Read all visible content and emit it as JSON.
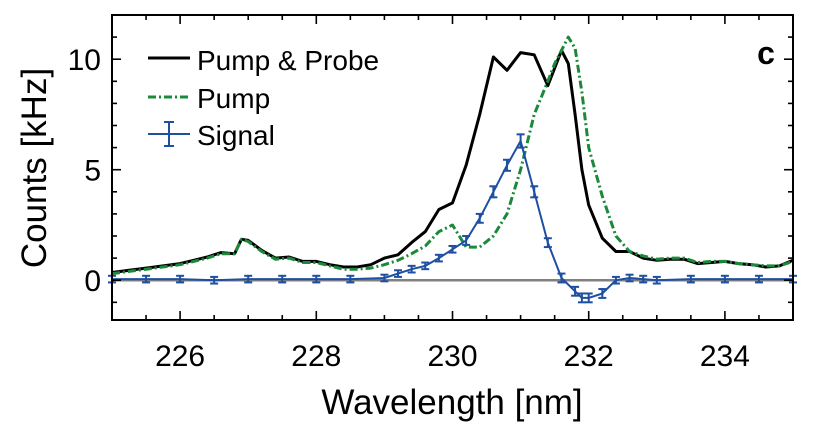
{
  "chart_data": {
    "type": "line",
    "panel_label": "c",
    "xlabel": "Wavelength [nm]",
    "ylabel": "Counts [kHz]",
    "xlim": [
      225,
      235
    ],
    "ylim": [
      -1.8,
      12
    ],
    "xticks": [
      226,
      228,
      230,
      232,
      234
    ],
    "yticks": [
      0,
      5,
      10
    ],
    "xtick_labels": [
      "226",
      "228",
      "230",
      "232",
      "234"
    ],
    "ytick_labels": [
      "0",
      "5",
      "10"
    ],
    "legend_position": "top-left",
    "series": [
      {
        "name": "Pump & Probe",
        "style": "solid",
        "color": "#000000",
        "x": [
          225.0,
          225.5,
          226.0,
          226.2,
          226.4,
          226.6,
          226.8,
          226.9,
          227.0,
          227.2,
          227.4,
          227.6,
          227.8,
          228.0,
          228.2,
          228.4,
          228.6,
          228.8,
          229.0,
          229.2,
          229.4,
          229.6,
          229.8,
          230.0,
          230.2,
          230.4,
          230.6,
          230.8,
          231.0,
          231.2,
          231.4,
          231.5,
          231.6,
          231.7,
          231.8,
          231.9,
          232.0,
          232.2,
          232.4,
          232.6,
          232.8,
          233.0,
          233.2,
          233.4,
          233.6,
          233.8,
          234.0,
          234.2,
          234.4,
          234.6,
          234.8,
          235.0
        ],
        "y": [
          0.35,
          0.55,
          0.75,
          0.9,
          1.05,
          1.25,
          1.2,
          1.85,
          1.8,
          1.35,
          1.0,
          1.05,
          0.85,
          0.85,
          0.7,
          0.6,
          0.6,
          0.7,
          1.0,
          1.15,
          1.7,
          2.2,
          3.2,
          3.5,
          5.2,
          7.5,
          10.1,
          9.5,
          10.3,
          10.2,
          8.8,
          9.6,
          10.4,
          9.8,
          7.5,
          5.0,
          3.4,
          1.9,
          1.3,
          1.3,
          1.0,
          0.9,
          0.95,
          0.95,
          0.75,
          0.8,
          0.85,
          0.75,
          0.7,
          0.6,
          0.65,
          0.9
        ]
      },
      {
        "name": "Pump",
        "style": "dashdot",
        "color": "#1a8a3a",
        "x": [
          225.0,
          225.5,
          226.0,
          226.2,
          226.4,
          226.6,
          226.8,
          226.9,
          227.0,
          227.2,
          227.4,
          227.6,
          227.8,
          228.0,
          228.2,
          228.4,
          228.6,
          228.8,
          229.0,
          229.2,
          229.4,
          229.6,
          229.8,
          230.0,
          230.2,
          230.4,
          230.6,
          230.8,
          231.0,
          231.2,
          231.4,
          231.5,
          231.6,
          231.7,
          231.8,
          231.9,
          232.0,
          232.2,
          232.4,
          232.6,
          232.8,
          233.0,
          233.2,
          233.4,
          233.6,
          233.8,
          234.0,
          234.2,
          234.4,
          234.6,
          234.8,
          235.0
        ],
        "y": [
          0.3,
          0.5,
          0.7,
          0.85,
          1.0,
          1.2,
          1.2,
          1.85,
          1.75,
          1.3,
          0.95,
          1.0,
          0.8,
          0.8,
          0.65,
          0.5,
          0.5,
          0.55,
          0.7,
          0.9,
          1.2,
          1.55,
          2.2,
          2.5,
          1.5,
          1.5,
          2.0,
          3.0,
          5.0,
          7.5,
          9.0,
          9.8,
          10.4,
          11.0,
          10.5,
          8.5,
          6.0,
          3.8,
          2.0,
          1.3,
          1.1,
          0.95,
          1.0,
          1.0,
          0.8,
          0.85,
          0.85,
          0.75,
          0.7,
          0.65,
          0.65,
          0.85
        ]
      },
      {
        "name": "Signal",
        "style": "errorbar",
        "color": "#1f4fa0",
        "x": [
          225.0,
          225.5,
          226.0,
          226.5,
          227.0,
          227.5,
          228.0,
          228.5,
          229.0,
          229.2,
          229.4,
          229.6,
          229.8,
          230.0,
          230.2,
          230.4,
          230.6,
          230.8,
          231.0,
          231.2,
          231.4,
          231.6,
          231.8,
          231.9,
          232.0,
          232.2,
          232.4,
          232.6,
          232.8,
          233.0,
          233.5,
          234.0,
          234.5,
          235.0
        ],
        "y": [
          0.05,
          0.05,
          0.05,
          0.0,
          0.05,
          0.05,
          0.05,
          0.05,
          0.1,
          0.3,
          0.5,
          0.65,
          1.0,
          1.4,
          1.8,
          2.8,
          4.0,
          5.2,
          6.3,
          4.0,
          1.7,
          0.1,
          -0.5,
          -0.8,
          -0.8,
          -0.6,
          0.0,
          0.1,
          0.05,
          0.0,
          0.05,
          0.05,
          0.05,
          0.05
        ],
        "error": [
          0.15,
          0.15,
          0.15,
          0.15,
          0.15,
          0.15,
          0.15,
          0.15,
          0.15,
          0.15,
          0.15,
          0.15,
          0.15,
          0.15,
          0.2,
          0.2,
          0.25,
          0.25,
          0.3,
          0.25,
          0.2,
          0.2,
          0.2,
          0.2,
          0.2,
          0.2,
          0.15,
          0.15,
          0.15,
          0.15,
          0.15,
          0.15,
          0.15,
          0.15
        ]
      }
    ],
    "baseline": {
      "y": 0,
      "color": "#808080"
    }
  }
}
